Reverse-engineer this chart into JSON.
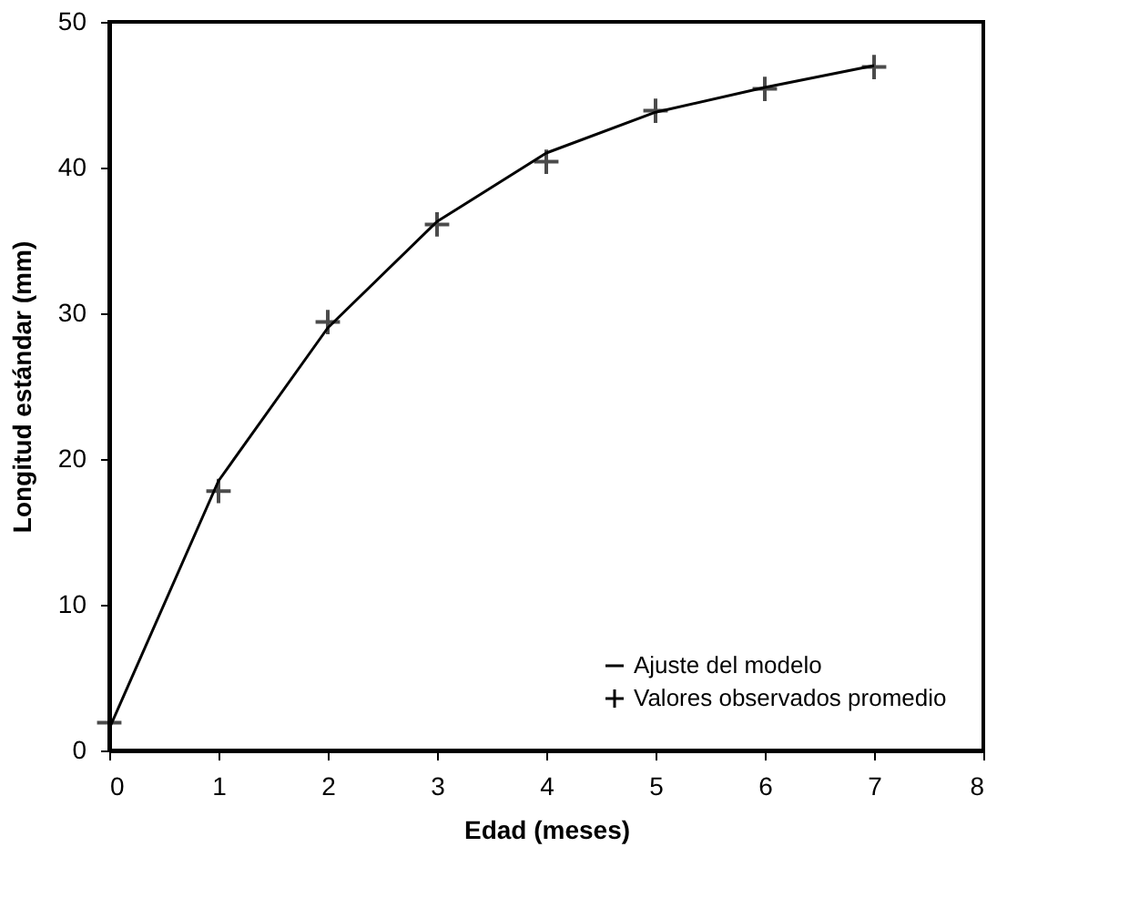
{
  "chart_data": {
    "type": "line",
    "xlabel": "Edad (meses)",
    "ylabel": "Longitud estándar (mm)",
    "xlim": [
      0,
      8
    ],
    "xticks": [
      0,
      1,
      2,
      3,
      4,
      5,
      6,
      7,
      8
    ],
    "ylim": [
      0,
      50
    ],
    "yticks": [
      0,
      10,
      20,
      30,
      40,
      50
    ],
    "grid": false,
    "legend": "bottom right",
    "series": [
      {
        "name": "Ajuste del modelo",
        "marker": "none",
        "line_style": "solid",
        "color": "#000000",
        "x": [
          0,
          1,
          2,
          3,
          4,
          5,
          6,
          7
        ],
        "values": [
          1.5,
          18.5,
          29,
          36.3,
          41,
          43.8,
          45.5,
          47
        ]
      },
      {
        "name": "Valores observados promedio",
        "type": "scatter",
        "marker": "cross",
        "color": "#000000",
        "x": [
          0,
          1,
          2,
          3,
          4,
          5,
          6,
          7
        ],
        "values": [
          1.9,
          17.8,
          29.4,
          36.1,
          40.4,
          43.9,
          45.4,
          46.9
        ]
      }
    ]
  }
}
